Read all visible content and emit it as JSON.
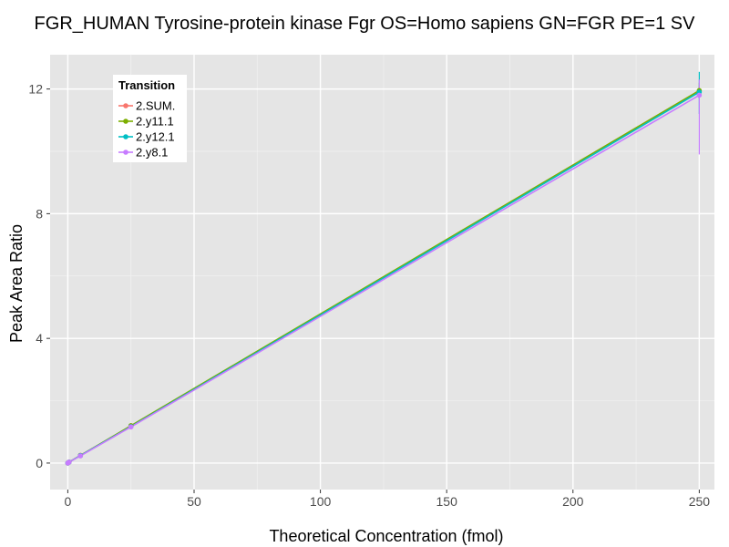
{
  "chart_data": {
    "type": "line",
    "title": "FGR_HUMAN Tyrosine-protein kinase Fgr OS=Homo sapiens GN=FGR PE=1 SV",
    "xlabel": "Theoretical Concentration (fmol)",
    "ylabel": "Peak Area Ratio",
    "xlim": [
      -7,
      256
    ],
    "ylim": [
      -0.85,
      13.1
    ],
    "x_ticks": [
      0,
      50,
      100,
      150,
      200,
      250
    ],
    "y_ticks": [
      0,
      4,
      8,
      12
    ],
    "grid": true,
    "legend": {
      "title": "Transition",
      "position": "top-left"
    },
    "x": [
      0,
      0.5,
      5,
      25,
      250
    ],
    "series": [
      {
        "name": "2.SUM.",
        "color": "#F8766D",
        "values": [
          0,
          0.03,
          0.25,
          1.18,
          11.92
        ],
        "error_low": [
          0,
          0,
          0.2,
          1.1,
          11.75
        ],
        "error_high": [
          0,
          0.05,
          0.3,
          1.26,
          12.1
        ]
      },
      {
        "name": "2.y11.1",
        "color": "#7CAE00",
        "values": [
          0,
          0.03,
          0.24,
          1.2,
          11.95
        ],
        "error_low": [
          0,
          0,
          0.2,
          1.12,
          11.7
        ],
        "error_high": [
          0,
          0.05,
          0.3,
          1.28,
          12.2
        ]
      },
      {
        "name": "2.y12.1",
        "color": "#00BFC4",
        "values": [
          0,
          0.03,
          0.24,
          1.17,
          11.9
        ],
        "error_low": [
          0,
          0,
          0.2,
          1.09,
          11.2
        ],
        "error_high": [
          0,
          0.05,
          0.3,
          1.25,
          12.55
        ]
      },
      {
        "name": "2.y8.1",
        "color": "#C77CFF",
        "values": [
          0,
          0.03,
          0.23,
          1.16,
          11.8
        ],
        "error_low": [
          0,
          0,
          0.19,
          1.08,
          9.9
        ],
        "error_high": [
          0,
          0.05,
          0.29,
          1.24,
          12.3
        ]
      }
    ]
  }
}
